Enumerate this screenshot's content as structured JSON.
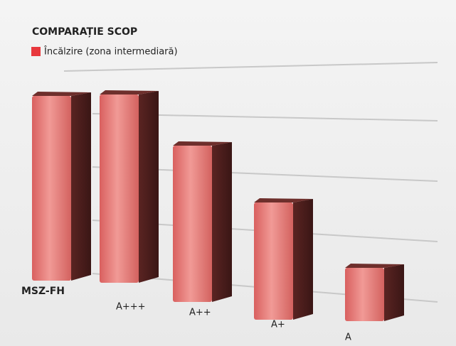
{
  "chart_data": {
    "type": "bar3d",
    "title": "COMPARAȚIE SCOP",
    "series": [
      {
        "name": "Încălzire (zona intermediară)",
        "color": "#e8383d"
      }
    ],
    "categories": [
      "MSZ-FH",
      "A+++",
      "A++",
      "A+",
      "A"
    ],
    "values": [
      5.2,
      5.3,
      4.4,
      3.3,
      1.5
    ],
    "ylim": [
      0,
      6
    ]
  }
}
